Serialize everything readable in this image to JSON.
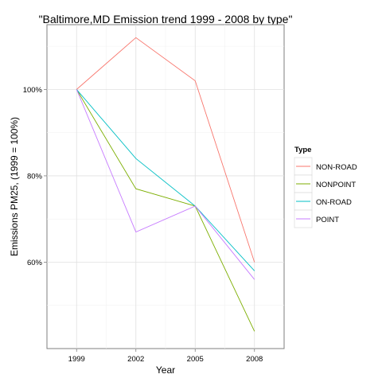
{
  "chart_data": {
    "type": "line",
    "title": "\"Baltimore,MD Emission trend 1999 - 2008 by type\"",
    "xlabel": "Year",
    "ylabel": "Emissions PM25, (1999 = 100%)",
    "x": [
      1999,
      2002,
      2005,
      2008
    ],
    "x_tick_labels": [
      "1999",
      "2002",
      "2005",
      "2008"
    ],
    "y_ticks": [
      0.6,
      0.8,
      1.0
    ],
    "y_tick_labels": [
      "60%",
      "80%",
      "100%"
    ],
    "ylim": [
      0.4,
      1.15
    ],
    "grid": true,
    "legend": {
      "title": "Type",
      "placement": "right"
    },
    "series": [
      {
        "name": "NON-ROAD",
        "color": "#F8766D",
        "values": [
          1.0,
          1.12,
          1.02,
          0.6
        ]
      },
      {
        "name": "NONPOINT",
        "color": "#7CAE00",
        "values": [
          1.0,
          0.77,
          0.73,
          0.44
        ]
      },
      {
        "name": "ON-ROAD",
        "color": "#00BFC4",
        "values": [
          1.0,
          0.84,
          0.73,
          0.58
        ]
      },
      {
        "name": "POINT",
        "color": "#C77CFF",
        "values": [
          1.0,
          0.67,
          0.73,
          0.56
        ]
      }
    ]
  }
}
